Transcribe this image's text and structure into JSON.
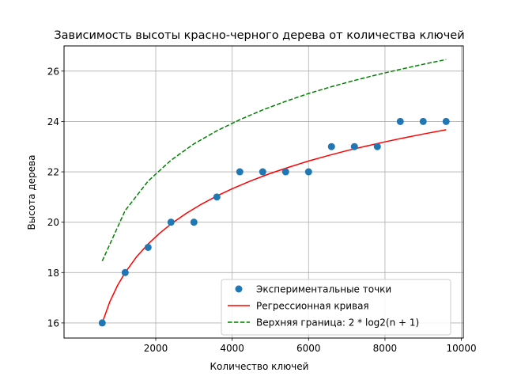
{
  "chart_data": {
    "type": "line",
    "title": "Зависимость высоты красно-черного дерева от количества ключей",
    "xlabel": "Количество ключей",
    "ylabel": "Высота дерева",
    "xlim": [
      -400,
      10050
    ],
    "ylim": [
      15.4,
      27.0
    ],
    "xticks": [
      2000,
      4000,
      6000,
      8000,
      10000
    ],
    "xtick_labels": [
      "2000",
      "4000",
      "6000",
      "8000",
      "10000"
    ],
    "yticks": [
      16,
      18,
      20,
      22,
      24,
      26
    ],
    "ytick_labels": [
      "16",
      "18",
      "20",
      "22",
      "24",
      "26"
    ],
    "grid": true,
    "legend_position": "lower-right",
    "series": [
      {
        "name": "Экспериментальные точки",
        "kind": "scatter",
        "color": "#1f77b4",
        "x": [
          600,
          1200,
          1800,
          2400,
          3000,
          3600,
          4200,
          4800,
          5400,
          6000,
          6600,
          7200,
          7800,
          8400,
          9000,
          9600
        ],
        "y": [
          16,
          18,
          19,
          20,
          20,
          21,
          22,
          22,
          22,
          22,
          23,
          23,
          23,
          24,
          24,
          24
        ]
      },
      {
        "name": "Регрессионная кривая",
        "kind": "line",
        "style": "solid",
        "color": "#ff0000",
        "x": [
          600,
          800,
          1000,
          1200,
          1500,
          1800,
          2100,
          2400,
          2800,
          3200,
          3600,
          4000,
          4500,
          5000,
          5500,
          6000,
          6500,
          7000,
          7500,
          8000,
          8500,
          9000,
          9600
        ],
        "y": [
          16.0,
          16.85,
          17.49,
          18.0,
          18.63,
          19.13,
          19.56,
          19.93,
          20.35,
          20.72,
          21.04,
          21.33,
          21.65,
          21.94,
          22.19,
          22.43,
          22.64,
          22.84,
          23.02,
          23.19,
          23.35,
          23.5,
          23.67
        ]
      },
      {
        "name": "Верхняя граница: 2 * log2(n + 1)",
        "kind": "line",
        "style": "dashed",
        "color": "#008000",
        "x": [
          600,
          1200,
          1800,
          2400,
          3000,
          3600,
          4200,
          4800,
          5400,
          6000,
          6600,
          7200,
          7800,
          8400,
          9000,
          9600
        ],
        "y": [
          18.46,
          20.46,
          21.63,
          22.46,
          23.11,
          23.63,
          24.07,
          24.46,
          24.8,
          25.11,
          25.38,
          25.63,
          25.86,
          26.07,
          26.27,
          26.46
        ]
      }
    ]
  }
}
